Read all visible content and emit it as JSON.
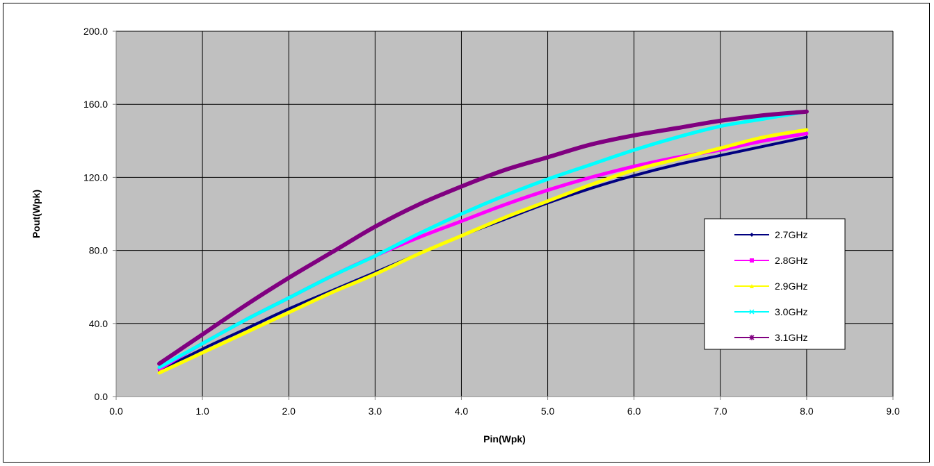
{
  "chart_data": {
    "type": "line",
    "title": "",
    "xlabel": "Pin(Wpk)",
    "ylabel": "Pout(Wpk)",
    "xlim": [
      0,
      9
    ],
    "ylim": [
      0,
      200
    ],
    "x_ticks": [
      "0.0",
      "1.0",
      "2.0",
      "3.0",
      "4.0",
      "5.0",
      "6.0",
      "7.0",
      "8.0",
      "9.0"
    ],
    "y_ticks": [
      "0.0",
      "40.0",
      "80.0",
      "120.0",
      "160.0",
      "200.0"
    ],
    "grid": true,
    "legend_position": "right",
    "plot_background": "#c0c0c0",
    "x": [
      0.5,
      1.0,
      1.5,
      2.0,
      2.5,
      3.0,
      3.5,
      4.0,
      4.5,
      5.0,
      5.5,
      6.0,
      6.5,
      7.0,
      7.5,
      8.0
    ],
    "series": [
      {
        "name": "2.7GHz",
        "color": "#000080",
        "marker": "diamond",
        "values": [
          14,
          26,
          37,
          48,
          58,
          68,
          78,
          88,
          97,
          106,
          114,
          121,
          127,
          132,
          137,
          142
        ]
      },
      {
        "name": "2.8GHz",
        "color": "#ff00ff",
        "marker": "square",
        "values": [
          15,
          29,
          42,
          54,
          66,
          77,
          87,
          96,
          105,
          113,
          120,
          126,
          131,
          135,
          140,
          144
        ]
      },
      {
        "name": "2.9GHz",
        "color": "#ffff00",
        "marker": "triangle",
        "values": [
          13,
          24,
          35,
          46,
          57,
          67,
          78,
          88,
          98,
          107,
          116,
          124,
          130,
          136,
          142,
          146
        ]
      },
      {
        "name": "3.0GHz",
        "color": "#00ffff",
        "marker": "x",
        "values": [
          16,
          29,
          42,
          54,
          66,
          77,
          89,
          100,
          110,
          119,
          127,
          135,
          142,
          148,
          152,
          156
        ]
      },
      {
        "name": "3.1GHz",
        "color": "#800080",
        "marker": "star",
        "values": [
          18,
          34,
          50,
          65,
          79,
          93,
          105,
          115,
          124,
          131,
          138,
          143,
          147,
          151,
          154,
          156
        ]
      }
    ]
  }
}
